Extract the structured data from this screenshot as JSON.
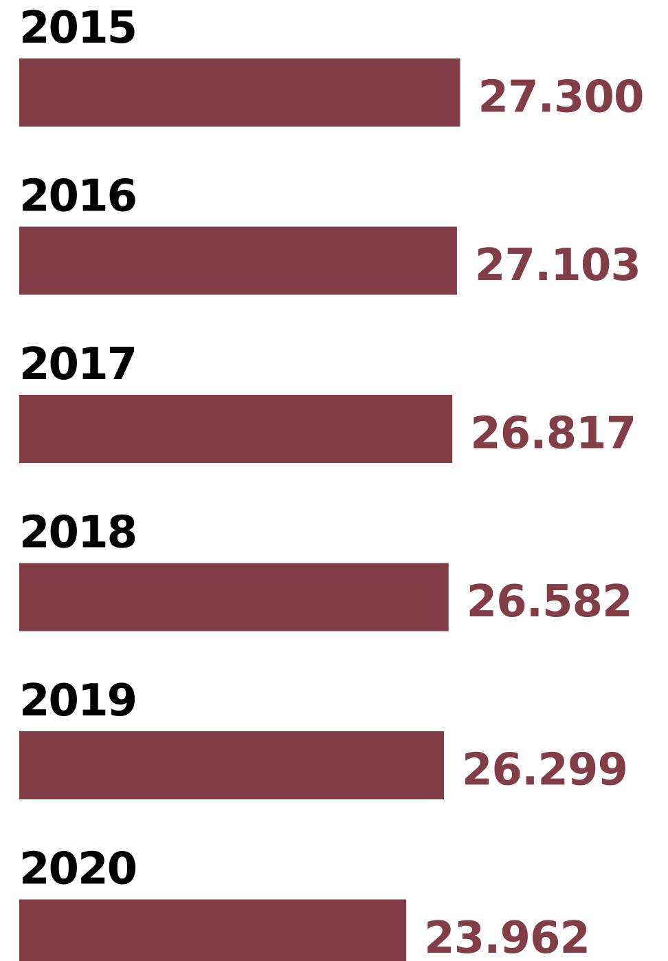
{
  "chart_data": {
    "type": "bar",
    "orientation": "horizontal",
    "categories": [
      "2015",
      "2016",
      "2017",
      "2018",
      "2019",
      "2020"
    ],
    "values": [
      27300,
      27103,
      26817,
      26582,
      26299,
      23962
    ],
    "value_labels": [
      "27.300",
      "27.103",
      "26.817",
      "26.582",
      "26.299",
      "23.962"
    ],
    "title": "",
    "xlabel": "",
    "ylabel": "",
    "grid": false,
    "legend": "none",
    "colors": {
      "bar": "#823d47",
      "category_text": "#000000",
      "value_text": "#823d47"
    }
  }
}
